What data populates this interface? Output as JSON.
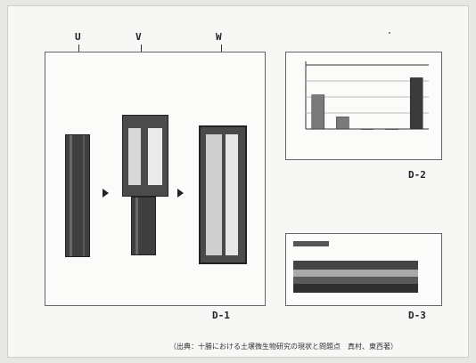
{
  "letters": {
    "u": "U",
    "v": "V",
    "w": "W"
  },
  "panel_labels": {
    "d1": "D-1",
    "d2": "D-2",
    "d3": "D-3"
  },
  "caption": "（出典：十勝における土壌微生物研究の現状と問題点　真村、東西著）",
  "colors": {
    "soil_dark": "#3f3f3f",
    "soil_mid": "#6c6c6c",
    "soil_light": "#c9c9c9",
    "bar_dark": "#4a4a4a"
  },
  "chart_data": [
    {
      "type": "bar",
      "title": "",
      "ylabel": "",
      "categories": [
        "",
        "",
        "",
        "",
        ""
      ],
      "values": [
        48,
        17,
        0,
        0,
        72
      ],
      "ylim": [
        0,
        90
      ]
    }
  ],
  "d3": {
    "header": "",
    "col_headers": [
      "",
      "",
      "",
      ""
    ]
  }
}
